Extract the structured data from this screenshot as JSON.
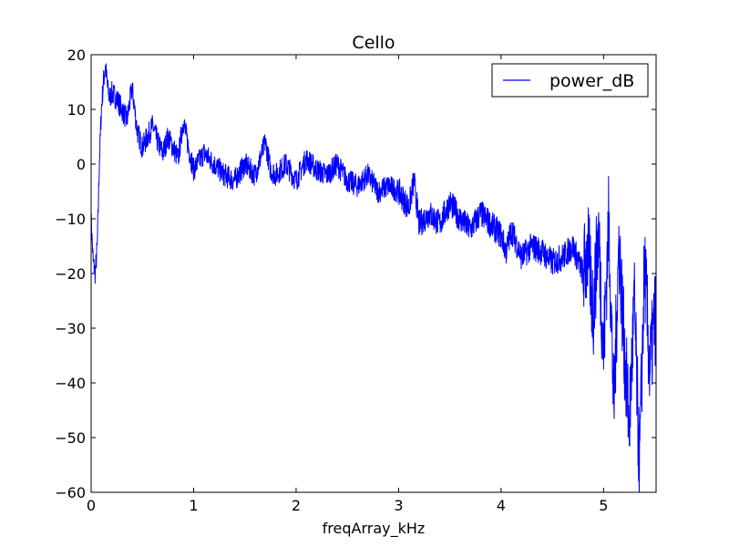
{
  "chart_data": {
    "type": "line",
    "title": "Cello",
    "xlabel": "freqArray_kHz",
    "ylabel": "",
    "xlim": [
      0,
      5.5125
    ],
    "ylim": [
      -60,
      20
    ],
    "xticks": [
      0,
      1,
      2,
      3,
      4,
      5
    ],
    "xtick_labels": [
      "0",
      "1",
      "2",
      "3",
      "4",
      "5"
    ],
    "yticks": [
      -60,
      -50,
      -40,
      -30,
      -20,
      -10,
      0,
      10,
      20
    ],
    "ytick_labels": [
      "−60",
      "−50",
      "−40",
      "−30",
      "−20",
      "−10",
      "0",
      "10",
      "20"
    ],
    "grid": false,
    "legend_position": "top-right",
    "series": [
      {
        "name": "power_dB",
        "color": "#0000ff",
        "x": [
          0,
          0.02,
          0.04,
          0.06,
          0.08,
          0.1,
          0.12,
          0.14,
          0.16,
          0.18,
          0.2,
          0.25,
          0.3,
          0.35,
          0.4,
          0.45,
          0.5,
          0.55,
          0.6,
          0.65,
          0.7,
          0.75,
          0.8,
          0.85,
          0.9,
          0.95,
          1.0,
          1.1,
          1.2,
          1.3,
          1.4,
          1.5,
          1.6,
          1.7,
          1.75,
          1.8,
          1.9,
          2.0,
          2.1,
          2.2,
          2.3,
          2.4,
          2.5,
          2.6,
          2.7,
          2.8,
          2.9,
          3.0,
          3.1,
          3.15,
          3.2,
          3.3,
          3.4,
          3.5,
          3.6,
          3.7,
          3.8,
          3.9,
          4.0,
          4.05,
          4.1,
          4.2,
          4.3,
          4.4,
          4.5,
          4.6,
          4.7,
          4.8,
          4.85,
          4.9,
          4.95,
          5.0,
          5.05,
          5.1,
          5.15,
          5.2,
          5.25,
          5.3,
          5.35,
          5.4,
          5.45,
          5.5
        ],
        "values": [
          -10,
          -18,
          -20,
          -15,
          0,
          10,
          15,
          18,
          14,
          12,
          13,
          12,
          10,
          8,
          14,
          6,
          3,
          5,
          7,
          4,
          2,
          5,
          3,
          1,
          8,
          3,
          -1,
          2,
          0,
          -2,
          -3,
          0,
          -2,
          4,
          -1,
          -2,
          0,
          -3,
          1,
          -1,
          -2,
          0,
          -3,
          -4,
          -2,
          -5,
          -4,
          -5,
          -8,
          -3,
          -11,
          -9,
          -11,
          -7,
          -10,
          -12,
          -9,
          -11,
          -13,
          -16,
          -12,
          -17,
          -15,
          -16,
          -18,
          -17,
          -15,
          -20,
          -16,
          -27,
          -12,
          -35,
          -10,
          -45,
          -14,
          -33,
          -48,
          -25,
          -56,
          -18,
          -38,
          -28
        ]
      }
    ]
  }
}
